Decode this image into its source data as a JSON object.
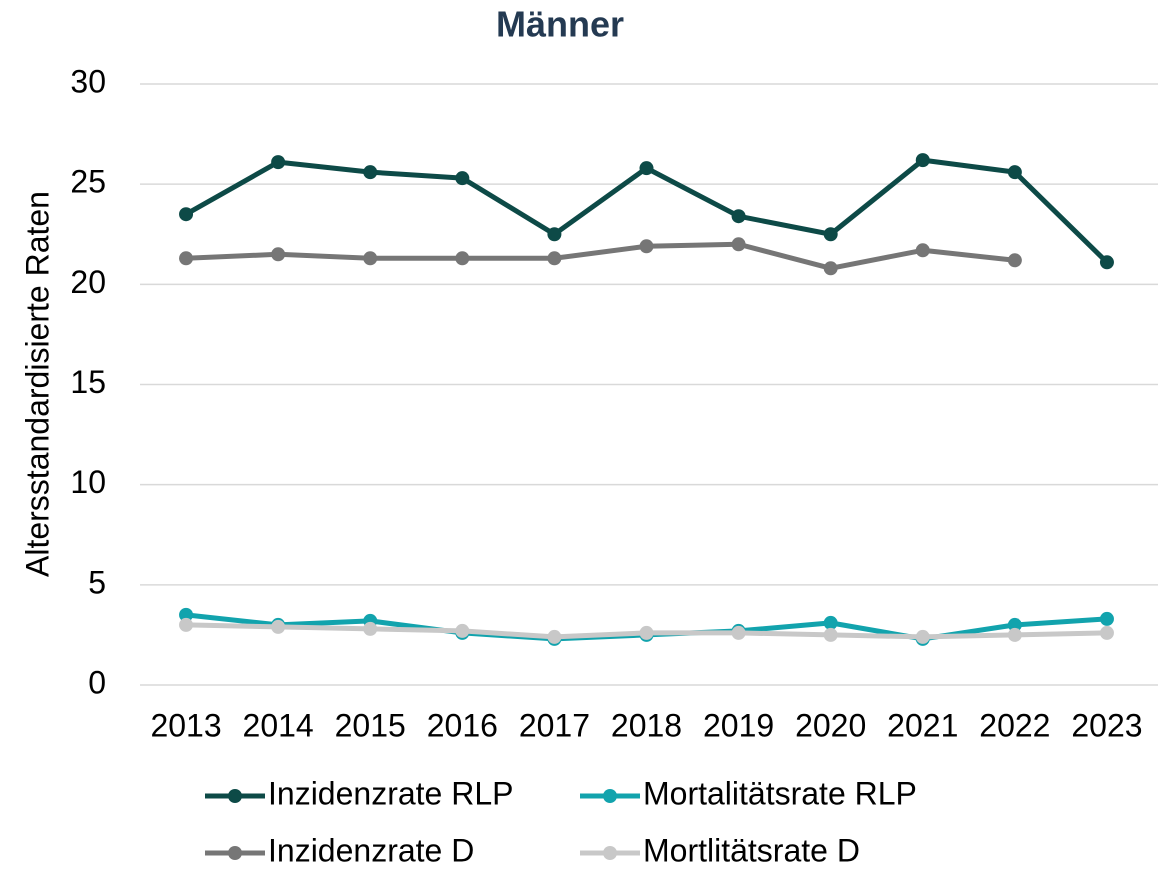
{
  "chart_data": {
    "type": "line",
    "title": "Männer",
    "y_label": "Altersstandardisierte Raten",
    "categories": [
      "2013",
      "2014",
      "2015",
      "2016",
      "2017",
      "2018",
      "2019",
      "2020",
      "2021",
      "2022",
      "2023"
    ],
    "series": [
      {
        "name": "Inzidenzrate RLP",
        "color": "#0d4a47",
        "values": [
          23.5,
          26.1,
          25.6,
          25.3,
          22.5,
          25.8,
          23.4,
          22.5,
          26.2,
          25.6,
          21.1
        ]
      },
      {
        "name": "Mortalitätsrate RLP",
        "color": "#12a3ad",
        "values": [
          3.5,
          3.0,
          3.2,
          2.6,
          2.3,
          2.5,
          2.7,
          3.1,
          2.3,
          3.0,
          3.3
        ]
      },
      {
        "name": "Inzidenzrate D",
        "color": "#767676",
        "values": [
          21.3,
          21.5,
          21.3,
          21.3,
          21.3,
          21.9,
          22.0,
          20.8,
          21.7,
          21.2,
          null
        ]
      },
      {
        "name": "Mortlitätsrate D",
        "color": "#c8c8c8",
        "values": [
          3.0,
          2.9,
          2.8,
          2.7,
          2.4,
          2.6,
          2.6,
          2.5,
          2.4,
          2.5,
          2.6
        ]
      }
    ],
    "ylim": [
      0,
      30
    ],
    "yticks": [
      0,
      5,
      10,
      15,
      20,
      25,
      30
    ],
    "grid": true,
    "legend": "bottom"
  }
}
